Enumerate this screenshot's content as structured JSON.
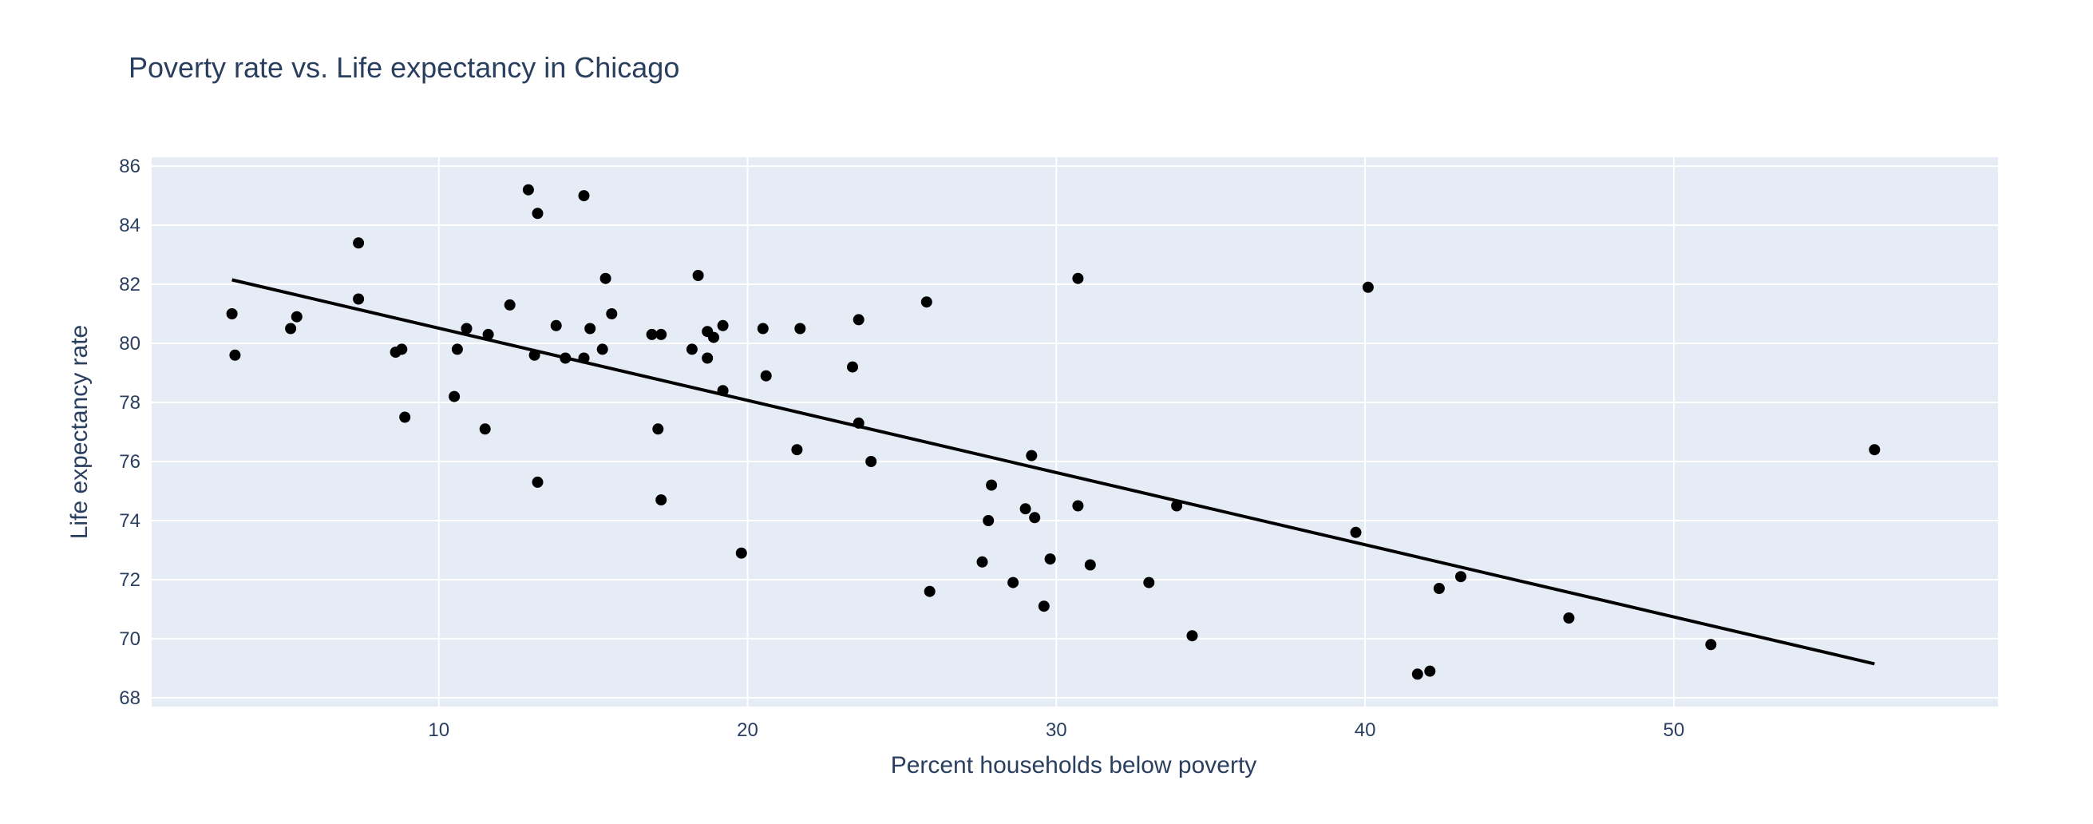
{
  "chart_data": {
    "type": "scatter",
    "title": "Poverty rate vs. Life expectancy in Chicago",
    "xlabel": "Percent households below poverty",
    "ylabel": "Life expectancy rate",
    "xlim": [
      0.7,
      60.5
    ],
    "ylim": [
      67.7,
      86.3
    ],
    "x_ticks": [
      10,
      20,
      30,
      40,
      50
    ],
    "y_ticks": [
      68,
      70,
      72,
      74,
      76,
      78,
      80,
      82,
      84,
      86
    ],
    "grid": true,
    "colors": {
      "plot_bg": "#e5ecf6",
      "grid": "#ffffff",
      "marker": "#000000",
      "trendline": "#000000",
      "text": "#2a3f5f"
    },
    "series": [
      {
        "mode": "markers",
        "points": [
          [
            3.3,
            81.0
          ],
          [
            3.4,
            79.6
          ],
          [
            5.2,
            80.5
          ],
          [
            5.4,
            80.9
          ],
          [
            7.4,
            83.4
          ],
          [
            7.4,
            81.5
          ],
          [
            8.6,
            79.7
          ],
          [
            8.8,
            79.8
          ],
          [
            8.9,
            77.5
          ],
          [
            10.5,
            78.2
          ],
          [
            10.6,
            79.8
          ],
          [
            10.9,
            80.5
          ],
          [
            11.6,
            80.3
          ],
          [
            11.5,
            77.1
          ],
          [
            12.3,
            81.3
          ],
          [
            12.9,
            85.2
          ],
          [
            13.2,
            84.4
          ],
          [
            13.1,
            79.6
          ],
          [
            13.2,
            75.3
          ],
          [
            13.8,
            80.6
          ],
          [
            14.1,
            79.5
          ],
          [
            14.7,
            85.0
          ],
          [
            14.7,
            79.5
          ],
          [
            14.9,
            80.5
          ],
          [
            15.3,
            79.8
          ],
          [
            15.4,
            82.2
          ],
          [
            15.6,
            81.0
          ],
          [
            16.9,
            80.3
          ],
          [
            17.1,
            77.1
          ],
          [
            17.2,
            80.3
          ],
          [
            17.2,
            74.7
          ],
          [
            18.2,
            79.8
          ],
          [
            18.4,
            82.3
          ],
          [
            18.7,
            80.4
          ],
          [
            18.7,
            79.5
          ],
          [
            18.9,
            80.2
          ],
          [
            19.2,
            80.6
          ],
          [
            19.2,
            78.4
          ],
          [
            19.8,
            72.9
          ],
          [
            20.5,
            80.5
          ],
          [
            20.6,
            78.9
          ],
          [
            21.6,
            76.4
          ],
          [
            21.7,
            80.5
          ],
          [
            23.4,
            79.2
          ],
          [
            23.6,
            80.8
          ],
          [
            23.6,
            77.3
          ],
          [
            24.0,
            76.0
          ],
          [
            25.8,
            81.4
          ],
          [
            25.9,
            71.6
          ],
          [
            27.6,
            72.6
          ],
          [
            27.8,
            74.0
          ],
          [
            27.9,
            75.2
          ],
          [
            28.6,
            71.9
          ],
          [
            29.0,
            74.4
          ],
          [
            29.2,
            76.2
          ],
          [
            29.3,
            74.1
          ],
          [
            29.6,
            71.1
          ],
          [
            29.8,
            72.7
          ],
          [
            30.7,
            82.2
          ],
          [
            30.7,
            74.5
          ],
          [
            31.1,
            72.5
          ],
          [
            33.0,
            71.9
          ],
          [
            33.9,
            74.5
          ],
          [
            34.4,
            70.1
          ],
          [
            39.7,
            73.6
          ],
          [
            40.1,
            81.9
          ],
          [
            41.7,
            68.8
          ],
          [
            42.1,
            68.9
          ],
          [
            42.4,
            71.7
          ],
          [
            43.1,
            72.1
          ],
          [
            46.6,
            70.7
          ],
          [
            51.2,
            69.8
          ],
          [
            56.5,
            76.4
          ]
        ]
      },
      {
        "mode": "lines",
        "points": [
          [
            3.3,
            82.15
          ],
          [
            56.5,
            69.15
          ]
        ]
      }
    ]
  }
}
